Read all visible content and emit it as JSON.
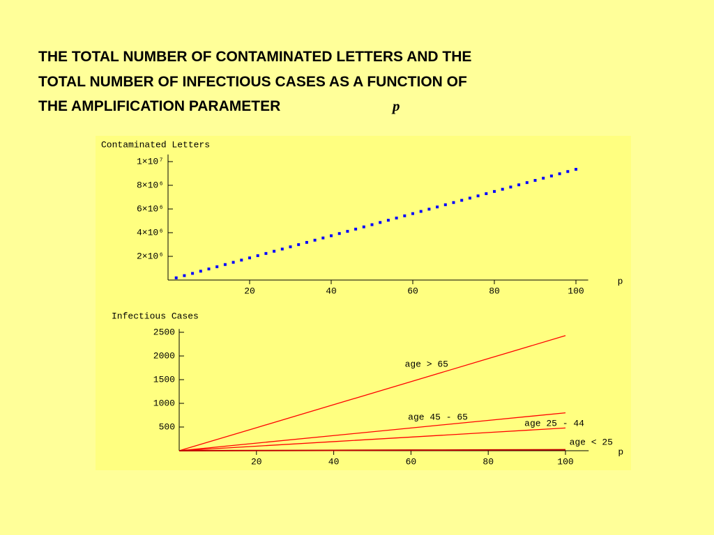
{
  "title_lines": [
    "THE TOTAL NUMBER OF CONTAMINATED LETTERS AND THE",
    "TOTAL NUMBER OF INFECTIOUS CASES AS A  FUNCTION OF",
    "THE AMPLIFICATION PARAMETER"
  ],
  "title_variable": "p",
  "chart_data": [
    {
      "type": "scatter",
      "ylabel": "Contaminated Letters",
      "xlabel": "p",
      "color": "#0000ff",
      "x": [
        2,
        4,
        6,
        8,
        10,
        12,
        14,
        16,
        18,
        20,
        22,
        24,
        26,
        28,
        30,
        32,
        34,
        36,
        38,
        40,
        42,
        44,
        46,
        48,
        50,
        52,
        54,
        56,
        58,
        60,
        62,
        64,
        66,
        68,
        70,
        72,
        74,
        76,
        78,
        80,
        82,
        84,
        86,
        88,
        90,
        92,
        94,
        96,
        98,
        100
      ],
      "values": [
        187000,
        374000,
        561000,
        748000,
        935000,
        1122000,
        1309000,
        1496000,
        1683000,
        1870000,
        2057000,
        2244000,
        2431000,
        2618000,
        2805000,
        2992000,
        3179000,
        3366000,
        3553000,
        3740000,
        3927000,
        4114000,
        4301000,
        4488000,
        4675000,
        4862000,
        5049000,
        5236000,
        5423000,
        5610000,
        5797000,
        5984000,
        6171000,
        6358000,
        6545000,
        6732000,
        6919000,
        7106000,
        7293000,
        7480000,
        7667000,
        7854000,
        8041000,
        8228000,
        8415000,
        8602000,
        8789000,
        8976000,
        9163000,
        9350000
      ],
      "xlim": [
        0,
        103
      ],
      "ylim": [
        0,
        10600000
      ],
      "xticks": [
        20,
        40,
        60,
        80,
        100
      ],
      "yticks": [
        {
          "value": 2000000,
          "label": "2×10⁶"
        },
        {
          "value": 4000000,
          "label": "4×10⁶"
        },
        {
          "value": 6000000,
          "label": "6×10⁶"
        },
        {
          "value": 8000000,
          "label": "8×10⁶"
        },
        {
          "value": 10000000,
          "label": "1×10⁷"
        }
      ]
    },
    {
      "type": "line",
      "ylabel": "Infectious Cases",
      "xlabel": "p",
      "x": [
        0,
        20,
        40,
        60,
        80,
        100
      ],
      "series": [
        {
          "name": "age > 65",
          "color": "#ff0000",
          "values": [
            0,
            486,
            972,
            1458,
            1944,
            2430
          ]
        },
        {
          "name": "age 45 - 65",
          "color": "#ff0000",
          "values": [
            0,
            160,
            320,
            480,
            640,
            800
          ]
        },
        {
          "name": "age 25 - 44",
          "color": "#ff0000",
          "values": [
            0,
            96,
            192,
            288,
            384,
            480
          ]
        },
        {
          "name": "age < 25",
          "color": "#c00000",
          "values": [
            0,
            4,
            8,
            12,
            16,
            20
          ]
        }
      ],
      "xlim": [
        0,
        106
      ],
      "ylim": [
        0,
        2570
      ],
      "xticks": [
        20,
        40,
        60,
        80,
        100
      ],
      "yticks": [
        500,
        1000,
        1500,
        2000,
        2500
      ]
    }
  ]
}
